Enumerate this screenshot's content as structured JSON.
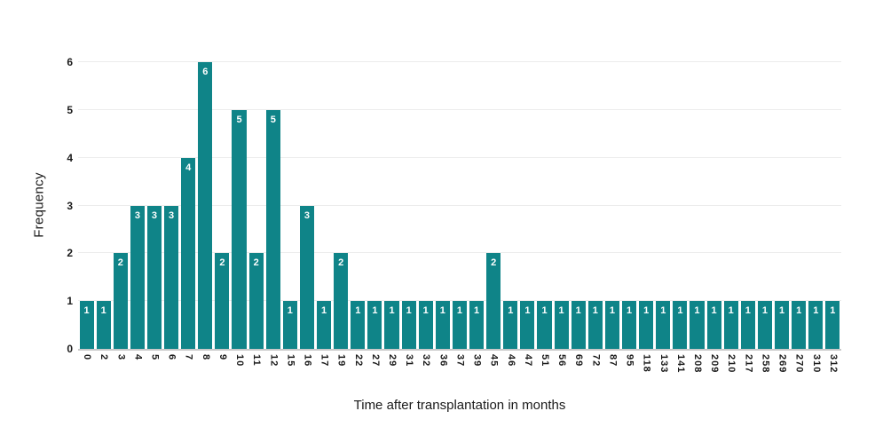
{
  "chart_data": {
    "type": "bar",
    "title": "",
    "xlabel": "Time after transplantation in months",
    "ylabel": "Frequency",
    "categories": [
      "0",
      "2",
      "3",
      "4",
      "5",
      "6",
      "7",
      "8",
      "9",
      "10",
      "11",
      "12",
      "15",
      "16",
      "17",
      "19",
      "22",
      "27",
      "29",
      "31",
      "32",
      "36",
      "37",
      "39",
      "45",
      "46",
      "47",
      "51",
      "56",
      "69",
      "72",
      "87",
      "95",
      "118",
      "133",
      "141",
      "208",
      "209",
      "210",
      "217",
      "258",
      "269",
      "270",
      "310",
      "312"
    ],
    "values": [
      1,
      1,
      2,
      3,
      3,
      3,
      4,
      6,
      2,
      5,
      2,
      5,
      1,
      3,
      1,
      2,
      1,
      1,
      1,
      1,
      1,
      1,
      1,
      1,
      2,
      1,
      1,
      1,
      1,
      1,
      1,
      1,
      1,
      1,
      1,
      1,
      1,
      1,
      1,
      1,
      1,
      1,
      1,
      1,
      1
    ],
    "value_labels_shown": true,
    "ylim": [
      0,
      6
    ],
    "yticks": [
      0,
      1,
      2,
      3,
      4,
      5,
      6
    ],
    "grid": "horizontal",
    "legend_position": "none",
    "colors": {
      "bar": "#0F8488",
      "value_label": "#FFFFFF",
      "gridline": "#ECECEC",
      "axis_line": "#C9C9C9",
      "text": "#1A1A1A",
      "background": "#FFFFFF"
    }
  }
}
